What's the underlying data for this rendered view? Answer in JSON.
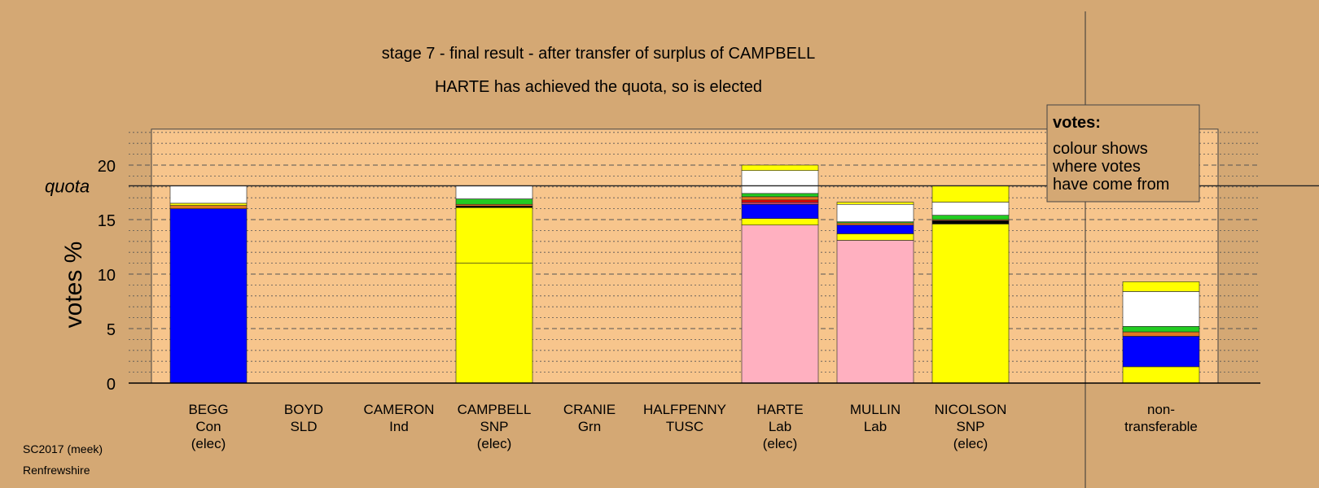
{
  "colors": {
    "background": "#d4a874",
    "plot_area": "#f7c58c",
    "Con": "#0000ff",
    "SNP": "#ffff00",
    "Lab": "#ffb0c0",
    "white": "#ffffff",
    "orange": "#e07820",
    "red": "#ff0000",
    "green": "#22cc22",
    "black": "#000000",
    "magenta": "#c04060",
    "brown": "#a06020"
  },
  "chart_data": {
    "type": "bar",
    "stacked": true,
    "title": "stage 7 - final result - after transfer of surplus of CAMPBELL",
    "subtitle": "HARTE has achieved the quota, so is elected",
    "ylabel": "votes %",
    "ylim": [
      0,
      23.3
    ],
    "yticks": [
      0,
      5,
      10,
      15,
      20
    ],
    "quota": 18.1,
    "quota_label": "quota",
    "grid": "dashed major every 5, dotted minor every 1",
    "legend": {
      "title": "votes:",
      "lines": [
        "colour shows",
        "where votes",
        "have come from"
      ],
      "placement": "top-right"
    },
    "categories": [
      {
        "name": "BEGG",
        "party": "Con",
        "status": "(elec)",
        "segments": [
          {
            "color": "Con",
            "value": 16.0
          },
          {
            "color": "orange",
            "value": 0.3
          },
          {
            "color": "SNP",
            "value": 0.2
          },
          {
            "color": "white",
            "value": 1.6
          }
        ]
      },
      {
        "name": "BOYD",
        "party": "SLD",
        "status": "",
        "segments": []
      },
      {
        "name": "CAMERON",
        "party": "Ind",
        "status": "",
        "segments": []
      },
      {
        "name": "CAMPBELL",
        "party": "SNP",
        "status": "(elec)",
        "segments": [
          {
            "color": "SNP",
            "value": 11.0
          },
          {
            "color": "SNP",
            "value": 5.1
          },
          {
            "color": "black",
            "value": 0.15
          },
          {
            "color": "orange",
            "value": 0.15
          },
          {
            "color": "green",
            "value": 0.5
          },
          {
            "color": "white",
            "value": 1.2
          }
        ]
      },
      {
        "name": "CRANIE",
        "party": "Grn",
        "status": "",
        "segments": []
      },
      {
        "name": "HALFPENNY",
        "party": "TUSC",
        "status": "",
        "segments": []
      },
      {
        "name": "HARTE",
        "party": "Lab",
        "status": "(elec)",
        "segments": [
          {
            "color": "Lab",
            "value": 14.5
          },
          {
            "color": "SNP",
            "value": 0.6
          },
          {
            "color": "Con",
            "value": 1.3
          },
          {
            "color": "magenta",
            "value": 0.2
          },
          {
            "color": "red",
            "value": 0.2
          },
          {
            "color": "orange",
            "value": 0.3
          },
          {
            "color": "green",
            "value": 0.3
          },
          {
            "color": "white",
            "value": 2.1
          },
          {
            "color": "SNP",
            "value": 0.5
          }
        ]
      },
      {
        "name": "MULLIN",
        "party": "Lab",
        "status": "",
        "segments": [
          {
            "color": "Lab",
            "value": 13.1
          },
          {
            "color": "SNP",
            "value": 0.6
          },
          {
            "color": "Con",
            "value": 0.8
          },
          {
            "color": "orange",
            "value": 0.2
          },
          {
            "color": "green",
            "value": 0.1
          },
          {
            "color": "white",
            "value": 1.6
          },
          {
            "color": "SNP",
            "value": 0.2
          }
        ]
      },
      {
        "name": "NICOLSON",
        "party": "SNP",
        "status": "(elec)",
        "segments": [
          {
            "color": "SNP",
            "value": 14.6
          },
          {
            "color": "black",
            "value": 0.3
          },
          {
            "color": "orange",
            "value": 0.1
          },
          {
            "color": "green",
            "value": 0.4
          },
          {
            "color": "white",
            "value": 1.2
          },
          {
            "color": "SNP",
            "value": 1.5
          }
        ]
      },
      {
        "name": "non-transferable",
        "party": "",
        "status": "",
        "segments": [
          {
            "color": "SNP",
            "value": 1.5
          },
          {
            "color": "Con",
            "value": 2.8
          },
          {
            "color": "orange",
            "value": 0.4
          },
          {
            "color": "green",
            "value": 0.5
          },
          {
            "color": "white",
            "value": 3.2
          },
          {
            "color": "SNP",
            "value": 0.9
          }
        ]
      }
    ],
    "nontransferable_label_lines": [
      "non-",
      "transferable"
    ]
  },
  "footer": {
    "line1": "SC2017 (meek)",
    "line2": "Renfrewshire"
  }
}
